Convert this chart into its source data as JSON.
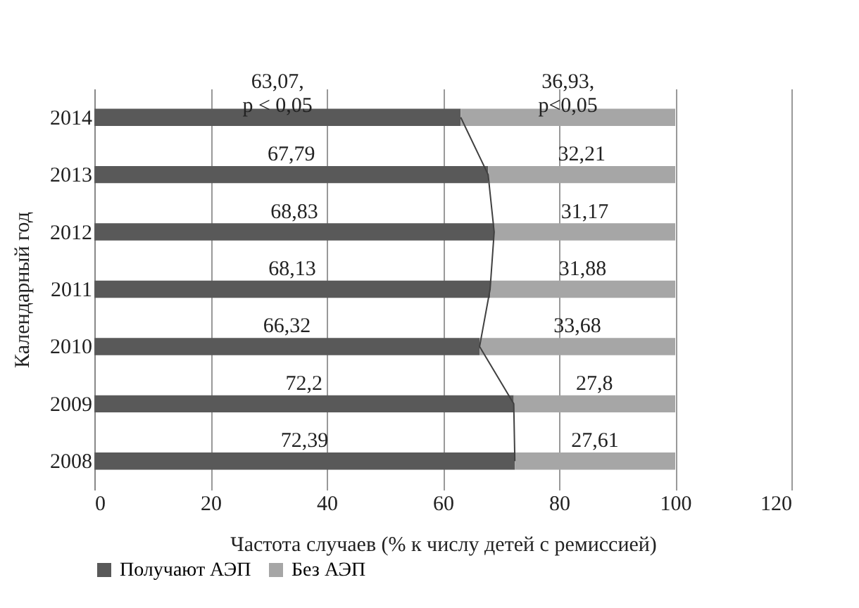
{
  "chart_data": {
    "type": "bar",
    "orientation": "horizontal",
    "stacked": true,
    "categories": [
      "2014",
      "2013",
      "2012",
      "2011",
      "2010",
      "2009",
      "2008"
    ],
    "series": [
      {
        "name": "Получают АЭП",
        "color": "#595959",
        "values": [
          63.07,
          67.79,
          68.83,
          68.13,
          66.32,
          72.2,
          72.39
        ],
        "value_labels": [
          null,
          "67,79",
          "68,83",
          "68,13",
          "66,32",
          "72,2",
          "72,39"
        ]
      },
      {
        "name": "Без АЭП",
        "color": "#a6a6a6",
        "values": [
          36.93,
          32.21,
          31.17,
          31.88,
          33.68,
          27.8,
          27.61
        ],
        "value_labels": [
          null,
          "32,21",
          "31,17",
          "31,88",
          "33,68",
          "27,8",
          "27,61"
        ]
      },
      {
        "type": "line",
        "color": "#404040",
        "values": [
          63.07,
          67.79,
          68.83,
          68.13,
          66.32,
          72.2,
          72.39
        ]
      }
    ],
    "xlim": [
      0,
      120
    ],
    "xticks": [
      0,
      20,
      40,
      60,
      80,
      100,
      120
    ],
    "grid": "x",
    "xlabel": "Частота случаев (% к числу детей с ремиссией)",
    "ylabel": "Календарный год",
    "legend": "bottom",
    "annotations": [
      "63,07,\np < 0,05",
      "36,93,\np<0,05"
    ]
  }
}
